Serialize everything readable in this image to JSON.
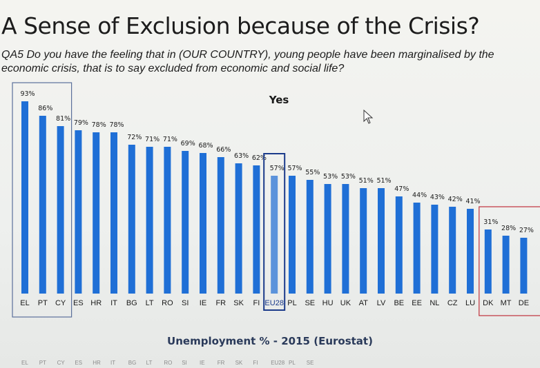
{
  "title": "A Sense of Exclusion because of the Crisis?",
  "question": "QA5 Do you have the feeling that in (OUR COUNTRY), young people have been marginalised by the economic crisis, that is to say excluded from economic and social life?",
  "chart_data": {
    "type": "bar",
    "title": "Yes",
    "xlabel": "",
    "ylabel": "",
    "ylim": [
      0,
      100
    ],
    "categories": [
      "EL",
      "PT",
      "CY",
      "ES",
      "HR",
      "IT",
      "BG",
      "LT",
      "RO",
      "SI",
      "IE",
      "FR",
      "SK",
      "FI",
      "EU28",
      "PL",
      "SE",
      "HU",
      "UK",
      "AT",
      "LV",
      "BE",
      "EE",
      "NL",
      "CZ",
      "LU",
      "DK",
      "MT",
      "DE"
    ],
    "values": [
      93,
      86,
      81,
      79,
      78,
      78,
      72,
      71,
      71,
      69,
      68,
      66,
      63,
      62,
      57,
      57,
      55,
      53,
      53,
      51,
      51,
      47,
      44,
      43,
      42,
      41,
      31,
      28,
      27
    ],
    "data_labels": [
      "93%",
      "86%",
      "81%",
      "79%",
      "78%",
      "78%",
      "72%",
      "71%",
      "71%",
      "69%",
      "68%",
      "66%",
      "63%",
      "62%",
      "57%",
      "57%",
      "55%",
      "53%",
      "53%",
      "51%",
      "51%",
      "47%",
      "44%",
      "43%",
      "42%",
      "41%",
      "31%",
      "28%",
      "27%"
    ],
    "highlighted_category": "EU28",
    "top_group": [
      "EL",
      "PT",
      "CY"
    ],
    "bottom_group": [
      "DK",
      "MT",
      "DE"
    ],
    "grid": false,
    "colors": {
      "bar": "#1f6fd6",
      "bar_highlight": "#5b93db",
      "top_box": "#5a6f9a",
      "eu_box": "#1a3a8a",
      "bottom_box": "#c0303a"
    }
  },
  "footer": {
    "title": "Unemployment % - 2015 (Eurostat)",
    "labels": [
      "EL",
      "PT",
      "CY",
      "ES",
      "HR",
      "IT",
      "BG",
      "LT",
      "RO",
      "SI",
      "IE",
      "FR",
      "SK",
      "FI",
      "EU28",
      "PL",
      "SE"
    ]
  }
}
